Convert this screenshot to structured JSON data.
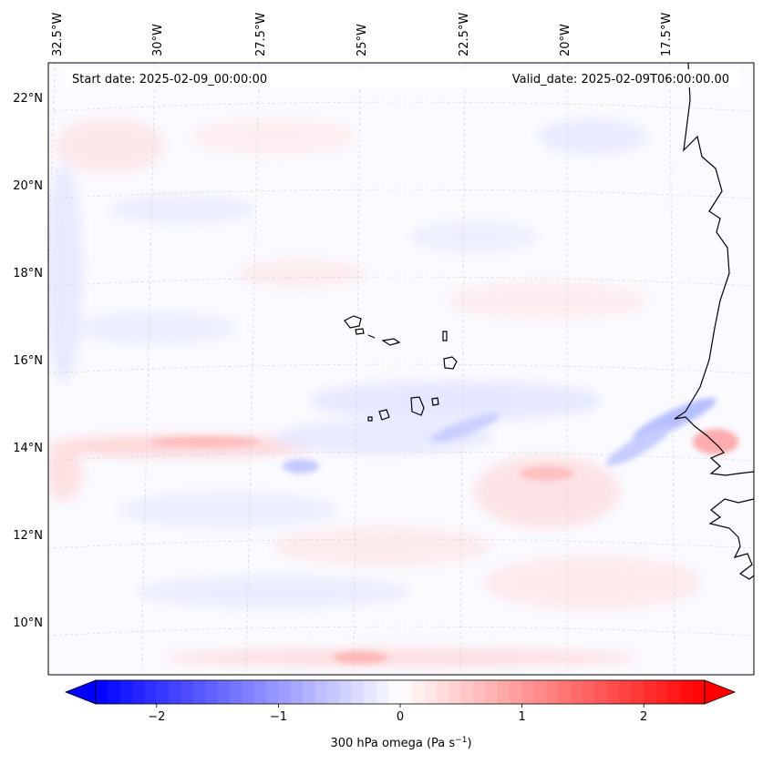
{
  "map": {
    "start_date": "Start date: 2025-02-09_00:00:00",
    "valid_date": "Valid_date: 2025-02-09T06:00:00.00",
    "lon_labels": [
      "32.5°W",
      "30°W",
      "27.5°W",
      "25°W",
      "22.5°W",
      "20°W",
      "17.5°W"
    ],
    "lat_labels": [
      "22°N",
      "20°N",
      "18°N",
      "16°N",
      "14°N",
      "12°N",
      "10°N"
    ]
  },
  "colorbar": {
    "ticks": [
      "−2",
      "−1",
      "0",
      "1",
      "2"
    ],
    "tick_values": [
      -2,
      -1,
      0,
      1,
      2
    ],
    "range": [
      -2.5,
      2.5
    ],
    "label_main": "300 hPa omega (Pa s",
    "label_sup": "−1",
    "label_end": ")",
    "colors": {
      "negative": "#0000ff",
      "zero": "#ffffff",
      "positive": "#ff0000"
    }
  }
}
